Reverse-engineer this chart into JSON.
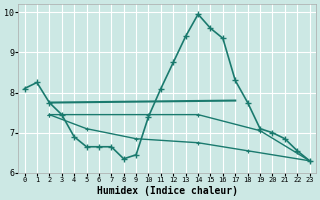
{
  "xlabel": "Humidex (Indice chaleur)",
  "bg_color": "#cce8e4",
  "grid_color": "#ffffff",
  "line_color": "#1a7a6e",
  "xlim": [
    -0.5,
    23.5
  ],
  "ylim": [
    6,
    10.2
  ],
  "yticks": [
    6,
    7,
    8,
    9,
    10
  ],
  "xticks": [
    0,
    1,
    2,
    3,
    4,
    5,
    6,
    7,
    8,
    9,
    10,
    11,
    12,
    13,
    14,
    15,
    16,
    17,
    18,
    19,
    20,
    21,
    22,
    23
  ],
  "series": [
    {
      "x": [
        0,
        1,
        2,
        3,
        4,
        5,
        6,
        7,
        8,
        9,
        10,
        11,
        12,
        13,
        14,
        15,
        16,
        17,
        18,
        19,
        20,
        21,
        22,
        23
      ],
      "y": [
        8.1,
        8.25,
        7.75,
        7.45,
        6.9,
        6.65,
        6.65,
        6.65,
        6.35,
        6.45,
        7.4,
        8.1,
        8.75,
        9.4,
        9.95,
        9.6,
        9.35,
        8.3,
        7.75,
        7.1,
        7.0,
        6.85,
        6.55,
        6.3
      ],
      "marker": "+",
      "ms": 4,
      "lw": 1.2,
      "mew": 1.0
    },
    {
      "x": [
        2,
        17
      ],
      "y": [
        7.75,
        7.8
      ],
      "marker": null,
      "ms": 0,
      "lw": 1.5,
      "mew": 0
    },
    {
      "x": [
        2,
        10,
        14,
        19,
        23
      ],
      "y": [
        7.45,
        7.45,
        7.45,
        7.05,
        6.3
      ],
      "marker": "+",
      "ms": 3,
      "lw": 1.0,
      "mew": 0.8
    },
    {
      "x": [
        2,
        5,
        9,
        14,
        18,
        23
      ],
      "y": [
        7.45,
        7.1,
        6.85,
        6.75,
        6.55,
        6.3
      ],
      "marker": "+",
      "ms": 3,
      "lw": 1.0,
      "mew": 0.8
    }
  ]
}
